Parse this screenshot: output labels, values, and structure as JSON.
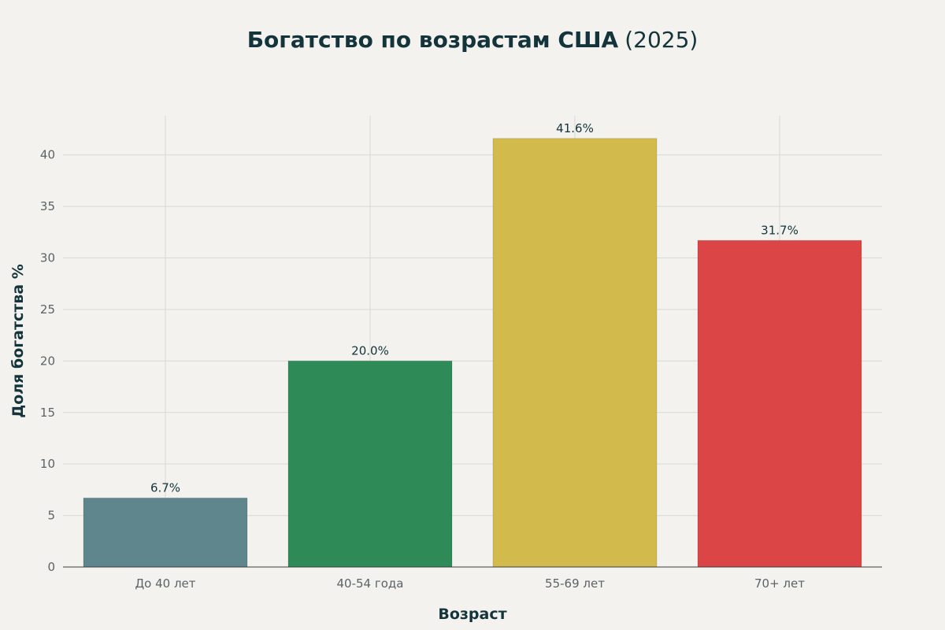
{
  "chart_data": {
    "type": "bar",
    "title": "Богатство по возрастам США",
    "title_suffix": "(2025)",
    "xlabel": "Возраст",
    "ylabel": "Доля богатства %",
    "categories": [
      "До 40 лет",
      "40-54 года",
      "55-69 лет",
      "70+ лет"
    ],
    "values": [
      6.7,
      20.0,
      41.6,
      31.7
    ],
    "value_labels": [
      "6.7%",
      "20.0%",
      "41.6%",
      "31.7%"
    ],
    "colors": [
      "#5e868c",
      "#2e8b57",
      "#d2ba4c",
      "#db4545"
    ],
    "ylim": [
      0,
      43.8
    ],
    "yticks": [
      0,
      5,
      10,
      15,
      20,
      25,
      30,
      35,
      40
    ],
    "grid": true,
    "legend": "none"
  }
}
